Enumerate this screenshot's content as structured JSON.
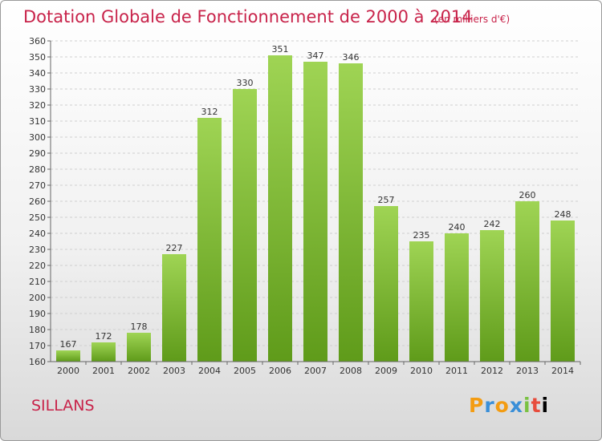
{
  "header": {
    "title": "Dotation Globale de Fonctionnement de 2000 à 2014",
    "subtitle": "(en milliers d'€)"
  },
  "footer": {
    "city": "SILLANS",
    "logo": [
      "P",
      "r",
      "o",
      "x",
      "i",
      "t",
      "i"
    ]
  },
  "colors": {
    "bar_top": "#9fd454",
    "bar_bottom": "#5f9b1a",
    "title": "#c8234a"
  },
  "chart_data": {
    "type": "bar",
    "title": "Dotation Globale de Fonctionnement de 2000 à 2014",
    "subtitle": "(en milliers d'€)",
    "categories": [
      "2000",
      "2001",
      "2002",
      "2003",
      "2004",
      "2005",
      "2006",
      "2007",
      "2008",
      "2009",
      "2010",
      "2011",
      "2012",
      "2013",
      "2014"
    ],
    "values": [
      167,
      172,
      178,
      227,
      312,
      330,
      351,
      347,
      346,
      257,
      235,
      240,
      242,
      260,
      248
    ],
    "ylim": [
      160,
      360
    ],
    "ytick_step": 10,
    "grid": true,
    "xlabel": "",
    "ylabel": ""
  }
}
